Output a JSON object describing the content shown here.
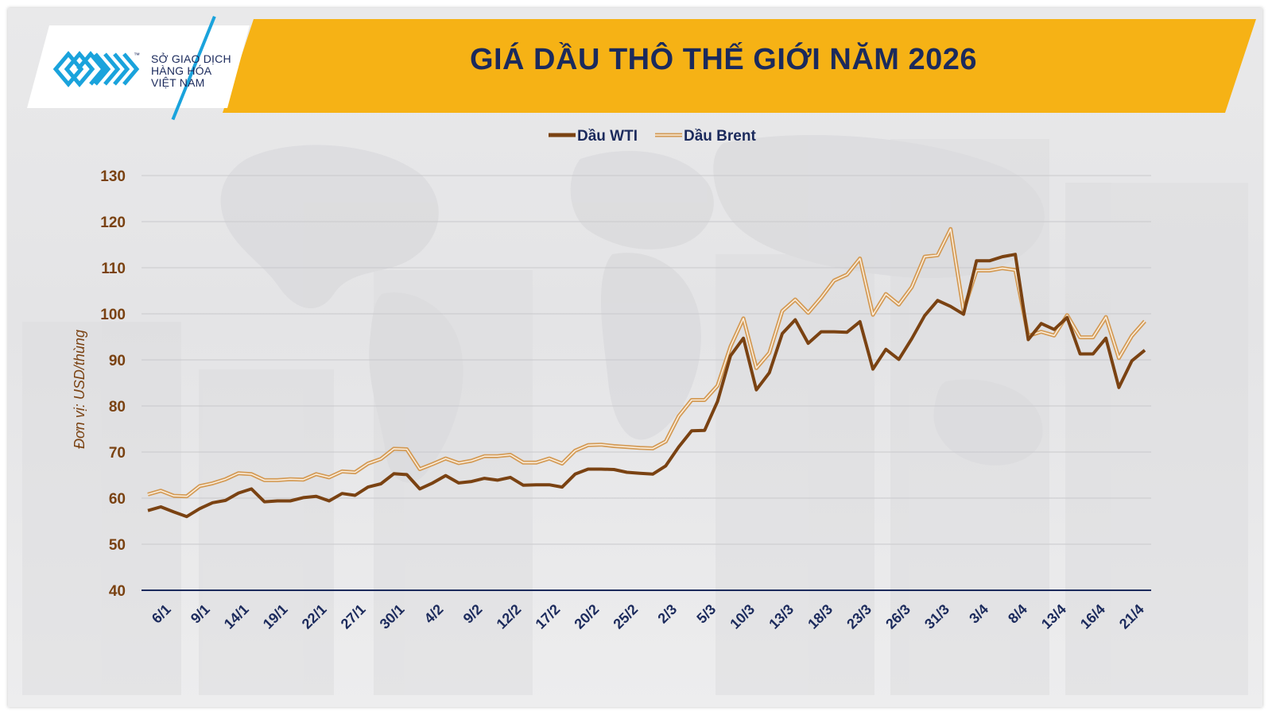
{
  "header": {
    "title": "GIÁ DẦU THÔ THẾ GIỚI NĂM 2026",
    "logo_lines": [
      "SỞ GIAO DỊCH",
      "HÀNG HÓA",
      "VIỆT NAM"
    ],
    "logo_tm": "™"
  },
  "colors": {
    "banner": "#f6b215",
    "title": "#1b2a5c",
    "wti": "#7a4212",
    "brent": "#d39a55",
    "axis_text": "#7a4212",
    "x_axis_line": "#1b2a5c",
    "x_tick_text": "#1b2a5c",
    "logo_blue": "#1aa3dc"
  },
  "icons": {
    "logo": "sgd-hang-hoa-logo-icon"
  },
  "chart_data": {
    "type": "line",
    "title": "GIÁ DẦU THÔ THẾ GIỚI NĂM 2026",
    "ylabel": "Đơn vị: USD/thùng",
    "xlabel": "",
    "ylim": [
      40,
      130
    ],
    "yticks": [
      40,
      50,
      60,
      70,
      80,
      90,
      100,
      110,
      120,
      130
    ],
    "grid": true,
    "legend": "top-center",
    "x_tick_labels": [
      "6/1",
      "9/1",
      "14/1",
      "19/1",
      "22/1",
      "27/1",
      "30/1",
      "4/2",
      "9/2",
      "12/2",
      "17/2",
      "20/2",
      "25/2",
      "2/3",
      "5/3",
      "10/3",
      "13/3",
      "18/3",
      "23/3",
      "26/3",
      "31/3",
      "3/4",
      "8/4",
      "13/4",
      "16/4",
      "21/4"
    ],
    "series": [
      {
        "name": "Dầu WTI",
        "values": [
          57.3,
          58.1,
          57.0,
          56.0,
          57.7,
          59.0,
          59.5,
          61.1,
          62.0,
          59.2,
          59.4,
          59.4,
          60.1,
          60.4,
          59.4,
          61.0,
          60.6,
          62.4,
          63.1,
          65.3,
          65.1,
          62.0,
          63.3,
          64.9,
          63.3,
          63.6,
          64.3,
          63.9,
          64.5,
          62.8,
          62.9,
          62.9,
          62.4,
          65.2,
          66.3,
          66.3,
          66.2,
          65.6,
          65.4,
          65.2,
          67.0,
          71.1,
          74.6,
          74.7,
          81.0,
          90.9,
          94.7,
          83.5,
          87.2,
          95.7,
          98.7,
          93.6,
          96.1,
          96.1,
          96.0,
          98.3,
          88.0,
          92.3,
          90.1,
          94.6,
          99.6,
          102.9,
          101.6,
          99.9,
          111.5,
          111.5,
          112.4,
          112.9,
          94.4,
          97.9,
          96.6,
          99.2,
          91.3,
          91.3,
          94.7,
          84.0,
          89.8,
          92.1
        ]
      },
      {
        "name": "Dầu Brent",
        "values": [
          60.8,
          61.6,
          60.5,
          60.4,
          62.6,
          63.2,
          64.1,
          65.4,
          65.2,
          63.9,
          63.9,
          64.1,
          64.0,
          65.2,
          64.5,
          65.8,
          65.6,
          67.5,
          68.5,
          70.7,
          70.6,
          66.3,
          67.4,
          68.6,
          67.6,
          68.1,
          69.1,
          69.1,
          69.4,
          67.7,
          67.7,
          68.6,
          67.5,
          70.3,
          71.5,
          71.6,
          71.3,
          71.1,
          70.9,
          70.8,
          72.3,
          77.8,
          81.3,
          81.3,
          84.4,
          92.9,
          99.0,
          88.2,
          91.5,
          100.6,
          103.1,
          100.2,
          103.5,
          107.2,
          108.5,
          112.0,
          99.8,
          104.3,
          102.0,
          105.8,
          112.4,
          112.7,
          118.4,
          100.7,
          109.4,
          109.4,
          109.9,
          109.5,
          95.2,
          96.1,
          95.3,
          99.7,
          94.9,
          94.9,
          99.3,
          90.4,
          95.2,
          98.4
        ]
      }
    ]
  }
}
